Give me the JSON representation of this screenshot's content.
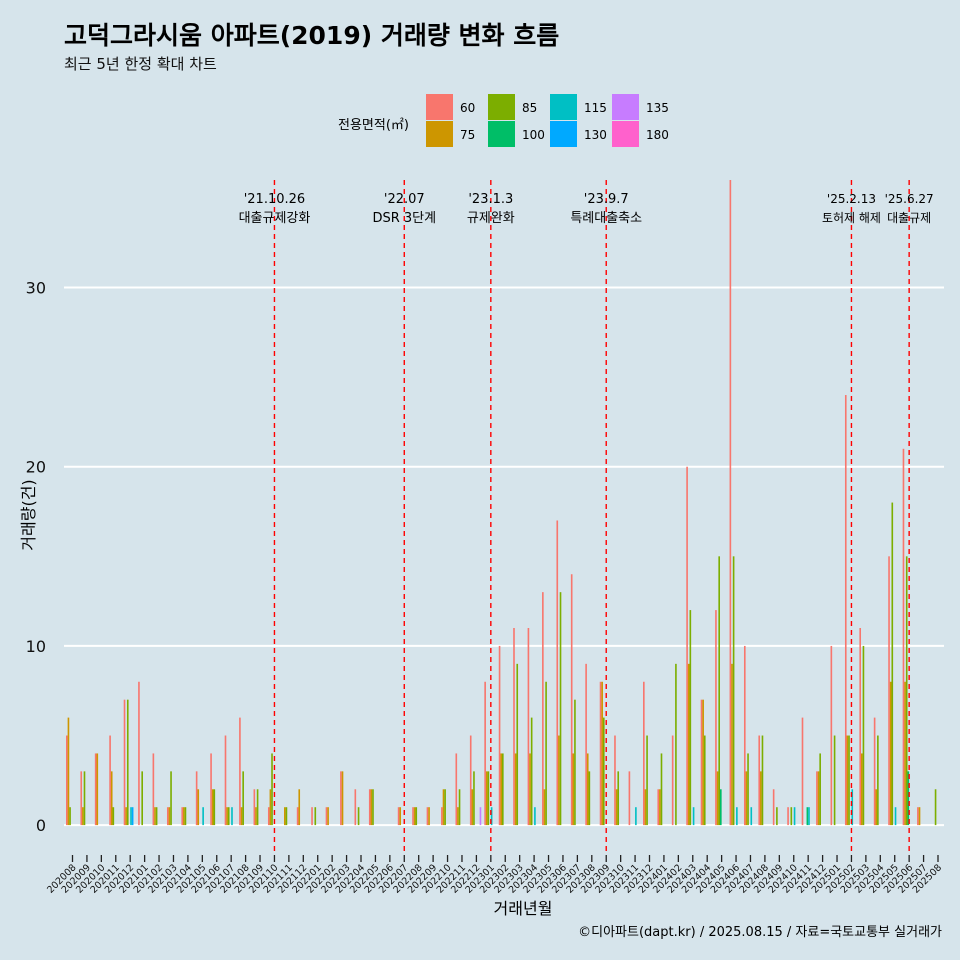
{
  "chart_data": {
    "type": "bar",
    "title": "고덕그라시움 아파트(2019) 거래량 변화 흐름",
    "subtitle": "최근 5년 한정 확대 차트",
    "xlabel": "거래년월",
    "ylabel": "거래량(건)",
    "caption": "©디아파트(dapt.kr) / 2025.08.15 / 자료=국토교통부 실거래가",
    "ylim": [
      -1.5,
      36
    ],
    "yticks": [
      0,
      10,
      20,
      30
    ],
    "legend": {
      "title": "전용면적(㎡)",
      "position": "top",
      "items": [
        {
          "name": "60",
          "color": "#F8766D"
        },
        {
          "name": "75",
          "color": "#CD9600"
        },
        {
          "name": "85",
          "color": "#7CAE00"
        },
        {
          "name": "100",
          "color": "#00BE67"
        },
        {
          "name": "115",
          "color": "#00BFC4"
        },
        {
          "name": "130",
          "color": "#00A9FF"
        },
        {
          "name": "135",
          "color": "#C77CFF"
        },
        {
          "name": "180",
          "color": "#FF61CC"
        }
      ]
    },
    "categories": [
      "202008",
      "202009",
      "202010",
      "202011",
      "202012",
      "202101",
      "202102",
      "202103",
      "202104",
      "202105",
      "202106",
      "202107",
      "202108",
      "202109",
      "202110",
      "202111",
      "202112",
      "202201",
      "202202",
      "202203",
      "202204",
      "202205",
      "202206",
      "202207",
      "202208",
      "202209",
      "202210",
      "202211",
      "202212",
      "202301",
      "202302",
      "202303",
      "202304",
      "202305",
      "202306",
      "202307",
      "202308",
      "202309",
      "202310",
      "202311",
      "202312",
      "202401",
      "202402",
      "202403",
      "202404",
      "202405",
      "202406",
      "202407",
      "202408",
      "202409",
      "202410",
      "202411",
      "202412",
      "202501",
      "202502",
      "202503",
      "202504",
      "202505",
      "202506",
      "202507",
      "202508"
    ],
    "series": [
      {
        "name": "60",
        "values": [
          5,
          3,
          4,
          5,
          7,
          8,
          4,
          1,
          1,
          3,
          4,
          5,
          6,
          2,
          1,
          0,
          1,
          1,
          1,
          3,
          2,
          2,
          0,
          1,
          1,
          1,
          1,
          4,
          5,
          8,
          10,
          11,
          11,
          13,
          17,
          14,
          9,
          8,
          5,
          3,
          8,
          2,
          5,
          20,
          7,
          12,
          36,
          10,
          5,
          2,
          1,
          6,
          3,
          10,
          24,
          11,
          6,
          15,
          21,
          1,
          0
        ]
      },
      {
        "name": "75",
        "values": [
          6,
          1,
          4,
          3,
          1,
          0,
          1,
          1,
          1,
          2,
          2,
          1,
          1,
          1,
          2,
          1,
          2,
          0,
          1,
          3,
          0,
          2,
          0,
          1,
          1,
          1,
          2,
          1,
          2,
          3,
          4,
          4,
          4,
          2,
          5,
          4,
          4,
          8,
          2,
          0,
          2,
          2,
          0,
          9,
          7,
          3,
          9,
          3,
          3,
          0,
          0,
          0,
          3,
          0,
          5,
          4,
          2,
          8,
          8,
          1,
          0
        ]
      },
      {
        "name": "85",
        "values": [
          1,
          3,
          0,
          1,
          7,
          3,
          1,
          3,
          1,
          0,
          2,
          1,
          3,
          2,
          4,
          1,
          0,
          1,
          0,
          0,
          1,
          2,
          0,
          0,
          1,
          0,
          2,
          2,
          3,
          3,
          4,
          9,
          6,
          8,
          13,
          7,
          3,
          6,
          3,
          0,
          5,
          4,
          9,
          12,
          5,
          15,
          15,
          4,
          5,
          1,
          1,
          0,
          4,
          5,
          5,
          10,
          5,
          18,
          15,
          0,
          2
        ]
      },
      {
        "name": "100",
        "values": [
          0,
          0,
          0,
          0,
          0,
          0,
          0,
          0,
          0,
          0,
          0,
          0,
          0,
          0,
          0,
          0,
          0,
          0,
          0,
          0,
          0,
          0,
          0,
          0,
          0,
          0,
          0,
          0,
          0,
          0,
          0,
          0,
          0,
          0,
          0,
          0,
          0,
          0,
          0,
          0,
          0,
          0,
          0,
          0,
          0,
          2,
          0,
          0,
          0,
          0,
          0,
          1,
          0,
          0,
          0,
          0,
          0,
          0,
          3,
          0,
          0
        ]
      },
      {
        "name": "115",
        "values": [
          0,
          0,
          0,
          0,
          1,
          0,
          0,
          0,
          0,
          1,
          0,
          1,
          0,
          0,
          0,
          0,
          0,
          0,
          0,
          0,
          0,
          0,
          0,
          0,
          0,
          0,
          0,
          0,
          0,
          1,
          0,
          0,
          1,
          0,
          0,
          0,
          0,
          0,
          0,
          1,
          0,
          0,
          0,
          1,
          0,
          0,
          1,
          1,
          0,
          0,
          1,
          1,
          0,
          0,
          2,
          0,
          0,
          1,
          0,
          0,
          0
        ]
      },
      {
        "name": "130",
        "values": [
          0,
          0,
          0,
          0,
          1,
          0,
          0,
          0,
          0,
          0,
          0,
          0,
          0,
          0,
          0,
          0,
          0,
          0,
          0,
          0,
          0,
          0,
          0,
          0,
          0,
          0,
          0,
          0,
          0,
          0,
          0,
          0,
          0,
          0,
          0,
          0,
          0,
          0,
          0,
          0,
          0,
          0,
          0,
          0,
          0,
          0,
          0,
          0,
          0,
          0,
          0,
          0,
          0,
          0,
          0,
          0,
          0,
          0,
          0,
          0,
          0
        ]
      },
      {
        "name": "135",
        "values": [
          0,
          0,
          0,
          0,
          0,
          0,
          0,
          0,
          0,
          0,
          0,
          0,
          0,
          0,
          0,
          0,
          0,
          0,
          0,
          0,
          0,
          0,
          0,
          0,
          0,
          0,
          0,
          0,
          1,
          0,
          0,
          0,
          0,
          0,
          0,
          0,
          0,
          0,
          0,
          0,
          0,
          0,
          0,
          0,
          0,
          0,
          0,
          0,
          0,
          0,
          0,
          0,
          0,
          0,
          0,
          0,
          0,
          0,
          0,
          0,
          0
        ]
      },
      {
        "name": "180",
        "values": [
          0,
          0,
          0,
          0,
          0,
          0,
          0,
          0,
          0,
          0,
          0,
          0,
          0,
          0,
          0,
          0,
          0,
          0,
          0,
          0,
          0,
          0,
          0,
          0,
          0,
          0,
          0,
          0,
          0,
          0,
          0,
          0,
          0,
          0,
          0,
          0,
          0,
          0,
          0,
          0,
          0,
          0,
          0,
          0,
          0,
          0,
          0,
          0,
          0,
          0,
          0,
          0,
          0,
          0,
          0,
          0,
          0,
          0,
          0,
          0,
          0
        ]
      }
    ],
    "annotations": [
      {
        "at": "202110",
        "date": "'21.10.26",
        "label": "대출규제강화",
        "row": "high"
      },
      {
        "at": "202207",
        "date": "'22.07",
        "label": "DSR 3단계",
        "row": "high"
      },
      {
        "at": "202301",
        "date": "'23.1.3",
        "label": "규제완화",
        "row": "high"
      },
      {
        "at": "202309",
        "date": "'23.9.7",
        "label": "특례대출축소",
        "row": "high"
      },
      {
        "at": "202502",
        "date": "'25.2.13",
        "label": "토허제 해제",
        "row": "low"
      },
      {
        "at": "202506",
        "date": "'25.6.27",
        "label": "대출규제",
        "row": "low"
      }
    ]
  }
}
